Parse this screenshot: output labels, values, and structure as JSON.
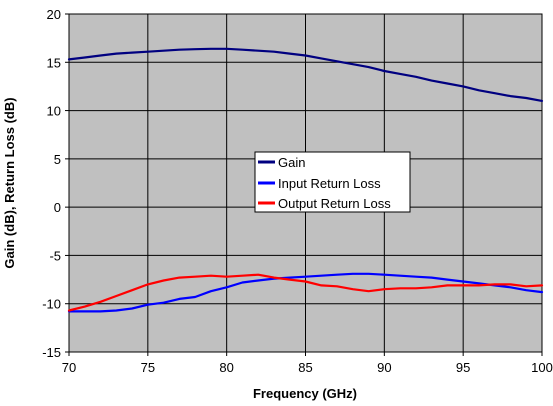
{
  "chart_data": {
    "type": "line",
    "title": "",
    "xlabel": "Frequency (GHz)",
    "ylabel": "Gain (dB), Return Loss (dB)",
    "xlim": [
      70,
      100
    ],
    "ylim": [
      -15,
      20
    ],
    "xticks": [
      70,
      75,
      80,
      85,
      90,
      95,
      100
    ],
    "yticks": [
      -15,
      -10,
      -5,
      0,
      5,
      10,
      15,
      20
    ],
    "grid": true,
    "plot_background": "#c0c0c0",
    "legend_position": "center",
    "series": [
      {
        "name": "Gain",
        "color": "#000080",
        "x": [
          70,
          71,
          72,
          73,
          74,
          75,
          76,
          77,
          78,
          79,
          80,
          81,
          82,
          83,
          84,
          85,
          86,
          87,
          88,
          89,
          90,
          91,
          92,
          93,
          94,
          95,
          96,
          97,
          98,
          99,
          100
        ],
        "y": [
          15.3,
          15.5,
          15.7,
          15.9,
          16.0,
          16.1,
          16.2,
          16.3,
          16.35,
          16.4,
          16.4,
          16.3,
          16.2,
          16.1,
          15.9,
          15.7,
          15.4,
          15.1,
          14.8,
          14.5,
          14.1,
          13.8,
          13.5,
          13.1,
          12.8,
          12.5,
          12.1,
          11.8,
          11.5,
          11.3,
          11.0
        ]
      },
      {
        "name": "Input Return Loss",
        "color": "#0000ff",
        "x": [
          70,
          71,
          72,
          73,
          74,
          75,
          76,
          77,
          78,
          79,
          80,
          81,
          82,
          83,
          84,
          85,
          86,
          87,
          88,
          89,
          90,
          91,
          92,
          93,
          94,
          95,
          96,
          97,
          98,
          99,
          100
        ],
        "y": [
          -10.8,
          -10.8,
          -10.8,
          -10.7,
          -10.5,
          -10.1,
          -9.9,
          -9.5,
          -9.3,
          -8.7,
          -8.3,
          -7.8,
          -7.6,
          -7.4,
          -7.3,
          -7.2,
          -7.1,
          -7.0,
          -6.9,
          -6.9,
          -7.0,
          -7.1,
          -7.2,
          -7.3,
          -7.5,
          -7.7,
          -7.9,
          -8.1,
          -8.3,
          -8.6,
          -8.8
        ]
      },
      {
        "name": "Output Return Loss",
        "color": "#ff0000",
        "x": [
          70,
          71,
          72,
          73,
          74,
          75,
          76,
          77,
          78,
          79,
          80,
          81,
          82,
          83,
          84,
          85,
          86,
          87,
          88,
          89,
          90,
          91,
          92,
          93,
          94,
          95,
          96,
          97,
          98,
          99,
          100
        ],
        "y": [
          -10.7,
          -10.3,
          -9.8,
          -9.2,
          -8.6,
          -8.0,
          -7.6,
          -7.3,
          -7.2,
          -7.1,
          -7.2,
          -7.1,
          -7.0,
          -7.3,
          -7.5,
          -7.7,
          -8.1,
          -8.2,
          -8.5,
          -8.7,
          -8.5,
          -8.4,
          -8.4,
          -8.3,
          -8.1,
          -8.1,
          -8.1,
          -8.0,
          -8.0,
          -8.2,
          -8.1
        ]
      }
    ]
  }
}
